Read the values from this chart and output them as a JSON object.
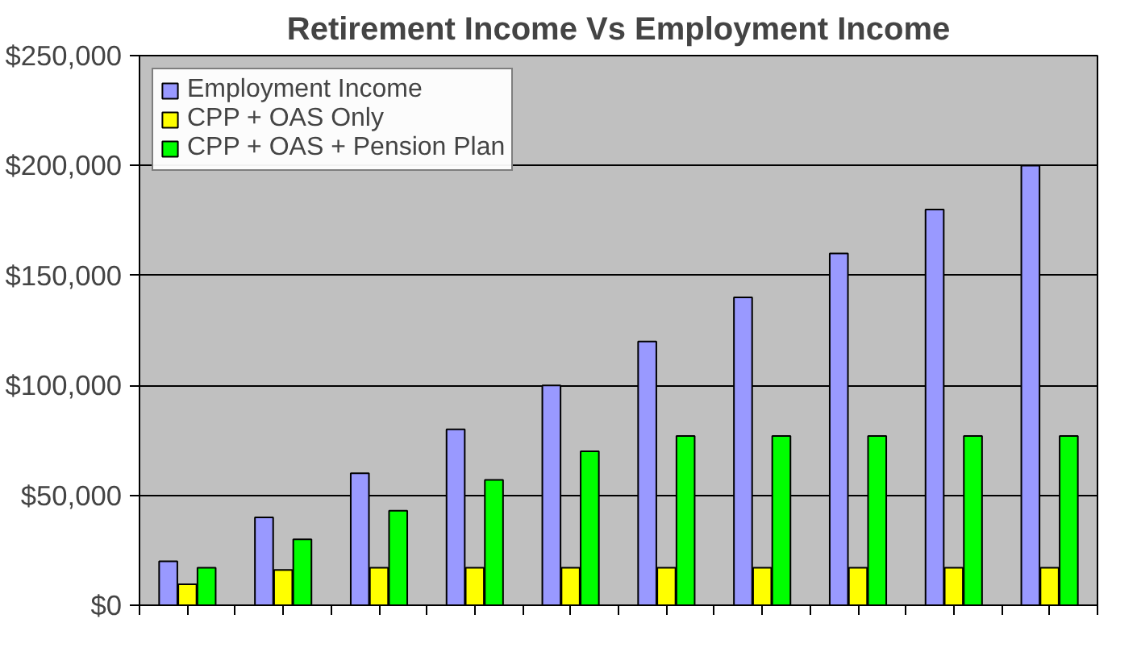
{
  "chart_data": {
    "type": "bar",
    "title": "Retirement Income Vs Employment Income",
    "categories": [
      null,
      null,
      null,
      null,
      null,
      null,
      null,
      null,
      null,
      null
    ],
    "series": [
      {
        "name": "Employment Income",
        "color": "#9999ff",
        "values": [
          20000,
          40000,
          60000,
          80000,
          100000,
          120000,
          140000,
          160000,
          180000,
          200000
        ]
      },
      {
        "name": "CPP + OAS Only",
        "color": "#ffff00",
        "values": [
          9500,
          16000,
          17000,
          17000,
          17000,
          17000,
          17000,
          17000,
          17000,
          17000
        ]
      },
      {
        "name": "CPP + OAS + Pension Plan",
        "color": "#00ff00",
        "values": [
          17000,
          30000,
          43000,
          57000,
          70000,
          77000,
          77000,
          77000,
          77000,
          77000
        ]
      }
    ],
    "ylim": [
      0,
      250000
    ],
    "yticks": [
      {
        "value": 0,
        "label": "$0"
      },
      {
        "value": 50000,
        "label": "$50,000"
      },
      {
        "value": 100000,
        "label": "$100,000"
      },
      {
        "value": 150000,
        "label": "$150,000"
      },
      {
        "value": 200000,
        "label": "$200,000"
      },
      {
        "value": 250000,
        "label": "$250,000"
      }
    ],
    "grid": "y",
    "legend": "top left"
  }
}
